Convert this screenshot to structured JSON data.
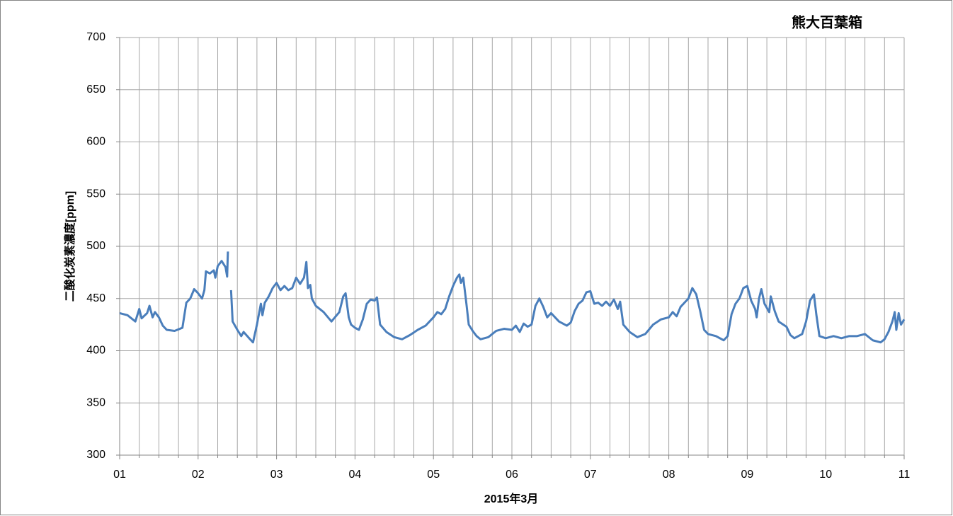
{
  "chart_data": {
    "type": "line",
    "title": "熊大百葉箱",
    "x_label": "2015年3月",
    "y_label": "二酸化炭素濃度[ppm]",
    "xlim": [
      1,
      11
    ],
    "ylim": [
      300,
      700
    ],
    "xticks": [
      {
        "value": 1,
        "label": "01"
      },
      {
        "value": 2,
        "label": "02"
      },
      {
        "value": 3,
        "label": "03"
      },
      {
        "value": 4,
        "label": "04"
      },
      {
        "value": 5,
        "label": "05"
      },
      {
        "value": 6,
        "label": "06"
      },
      {
        "value": 7,
        "label": "07"
      },
      {
        "value": 8,
        "label": "08"
      },
      {
        "value": 9,
        "label": "09"
      },
      {
        "value": 10,
        "label": "10"
      },
      {
        "value": 11,
        "label": "11"
      }
    ],
    "yticks": [
      300,
      350,
      400,
      450,
      500,
      550,
      600,
      650,
      700
    ],
    "grid": true,
    "minor_grid_per_interval": 4,
    "series": [
      {
        "name": "二酸化炭素濃度",
        "color": "#4a7ebb",
        "x": [
          1.0,
          1.1,
          1.2,
          1.25,
          1.28,
          1.35,
          1.38,
          1.42,
          1.45,
          1.5,
          1.55,
          1.6,
          1.7,
          1.8,
          1.85,
          1.9,
          1.95,
          2.0,
          2.05,
          2.08,
          2.1,
          2.15,
          2.2,
          2.22,
          2.25,
          2.3,
          2.35,
          2.37,
          2.38,
          2.4,
          2.42,
          2.44,
          2.5,
          2.55,
          2.58,
          2.65,
          2.7,
          2.75,
          2.8,
          2.82,
          2.85,
          2.9,
          2.95,
          3.0,
          3.05,
          3.1,
          3.15,
          3.2,
          3.25,
          3.3,
          3.35,
          3.38,
          3.4,
          3.43,
          3.45,
          3.5,
          3.6,
          3.7,
          3.8,
          3.85,
          3.88,
          3.92,
          3.95,
          4.0,
          4.05,
          4.1,
          4.15,
          4.2,
          4.25,
          4.28,
          4.32,
          4.4,
          4.5,
          4.6,
          4.7,
          4.8,
          4.9,
          5.0,
          5.05,
          5.1,
          5.15,
          5.2,
          5.25,
          5.3,
          5.33,
          5.35,
          5.38,
          5.42,
          5.45,
          5.5,
          5.55,
          5.6,
          5.7,
          5.8,
          5.9,
          6.0,
          6.05,
          6.1,
          6.15,
          6.2,
          6.25,
          6.3,
          6.35,
          6.4,
          6.45,
          6.5,
          6.55,
          6.6,
          6.7,
          6.75,
          6.8,
          6.85,
          6.9,
          6.95,
          7.0,
          7.05,
          7.1,
          7.15,
          7.2,
          7.25,
          7.3,
          7.35,
          7.38,
          7.42,
          7.5,
          7.6,
          7.7,
          7.8,
          7.9,
          8.0,
          8.05,
          8.1,
          8.15,
          8.2,
          8.25,
          8.3,
          8.35,
          8.4,
          8.45,
          8.5,
          8.6,
          8.7,
          8.75,
          8.8,
          8.85,
          8.9,
          8.95,
          9.0,
          9.05,
          9.1,
          9.12,
          9.15,
          9.18,
          9.22,
          9.28,
          9.3,
          9.35,
          9.4,
          9.5,
          9.55,
          9.6,
          9.7,
          9.75,
          9.8,
          9.85,
          9.88,
          9.92,
          10.0,
          10.1,
          10.2,
          10.3,
          10.4,
          10.5,
          10.6,
          10.7,
          10.75,
          10.8,
          10.85,
          10.88,
          10.9,
          10.93,
          10.96,
          11.0
        ],
        "values": [
          436,
          434,
          428,
          440,
          431,
          436,
          443,
          432,
          437,
          432,
          424,
          420,
          419,
          422,
          446,
          450,
          459,
          455,
          450,
          458,
          476,
          474,
          477,
          470,
          481,
          486,
          480,
          471,
          495,
          null,
          458,
          428,
          420,
          414,
          418,
          412,
          408,
          425,
          445,
          434,
          446,
          452,
          460,
          465,
          458,
          462,
          458,
          460,
          470,
          464,
          470,
          485,
          460,
          463,
          450,
          443,
          437,
          428,
          437,
          452,
          455,
          432,
          425,
          422,
          420,
          430,
          445,
          449,
          448,
          451,
          425,
          418,
          413,
          411,
          415,
          420,
          424,
          432,
          437,
          435,
          440,
          452,
          462,
          470,
          473,
          465,
          470,
          445,
          425,
          419,
          414,
          411,
          413,
          419,
          421,
          420,
          424,
          418,
          426,
          423,
          425,
          443,
          450,
          442,
          432,
          436,
          432,
          428,
          424,
          427,
          438,
          445,
          448,
          456,
          457,
          445,
          446,
          443,
          447,
          443,
          449,
          440,
          447,
          425,
          418,
          413,
          416,
          425,
          430,
          432,
          437,
          433,
          442,
          446,
          450,
          460,
          454,
          438,
          420,
          416,
          414,
          410,
          414,
          435,
          445,
          450,
          460,
          462,
          448,
          440,
          432,
          450,
          459,
          445,
          437,
          452,
          438,
          428,
          423,
          415,
          412,
          416,
          428,
          448,
          454,
          435,
          414,
          412,
          414,
          412,
          414,
          414,
          416,
          410,
          408,
          411,
          418,
          428,
          437,
          420,
          436,
          425,
          430
        ]
      }
    ]
  }
}
